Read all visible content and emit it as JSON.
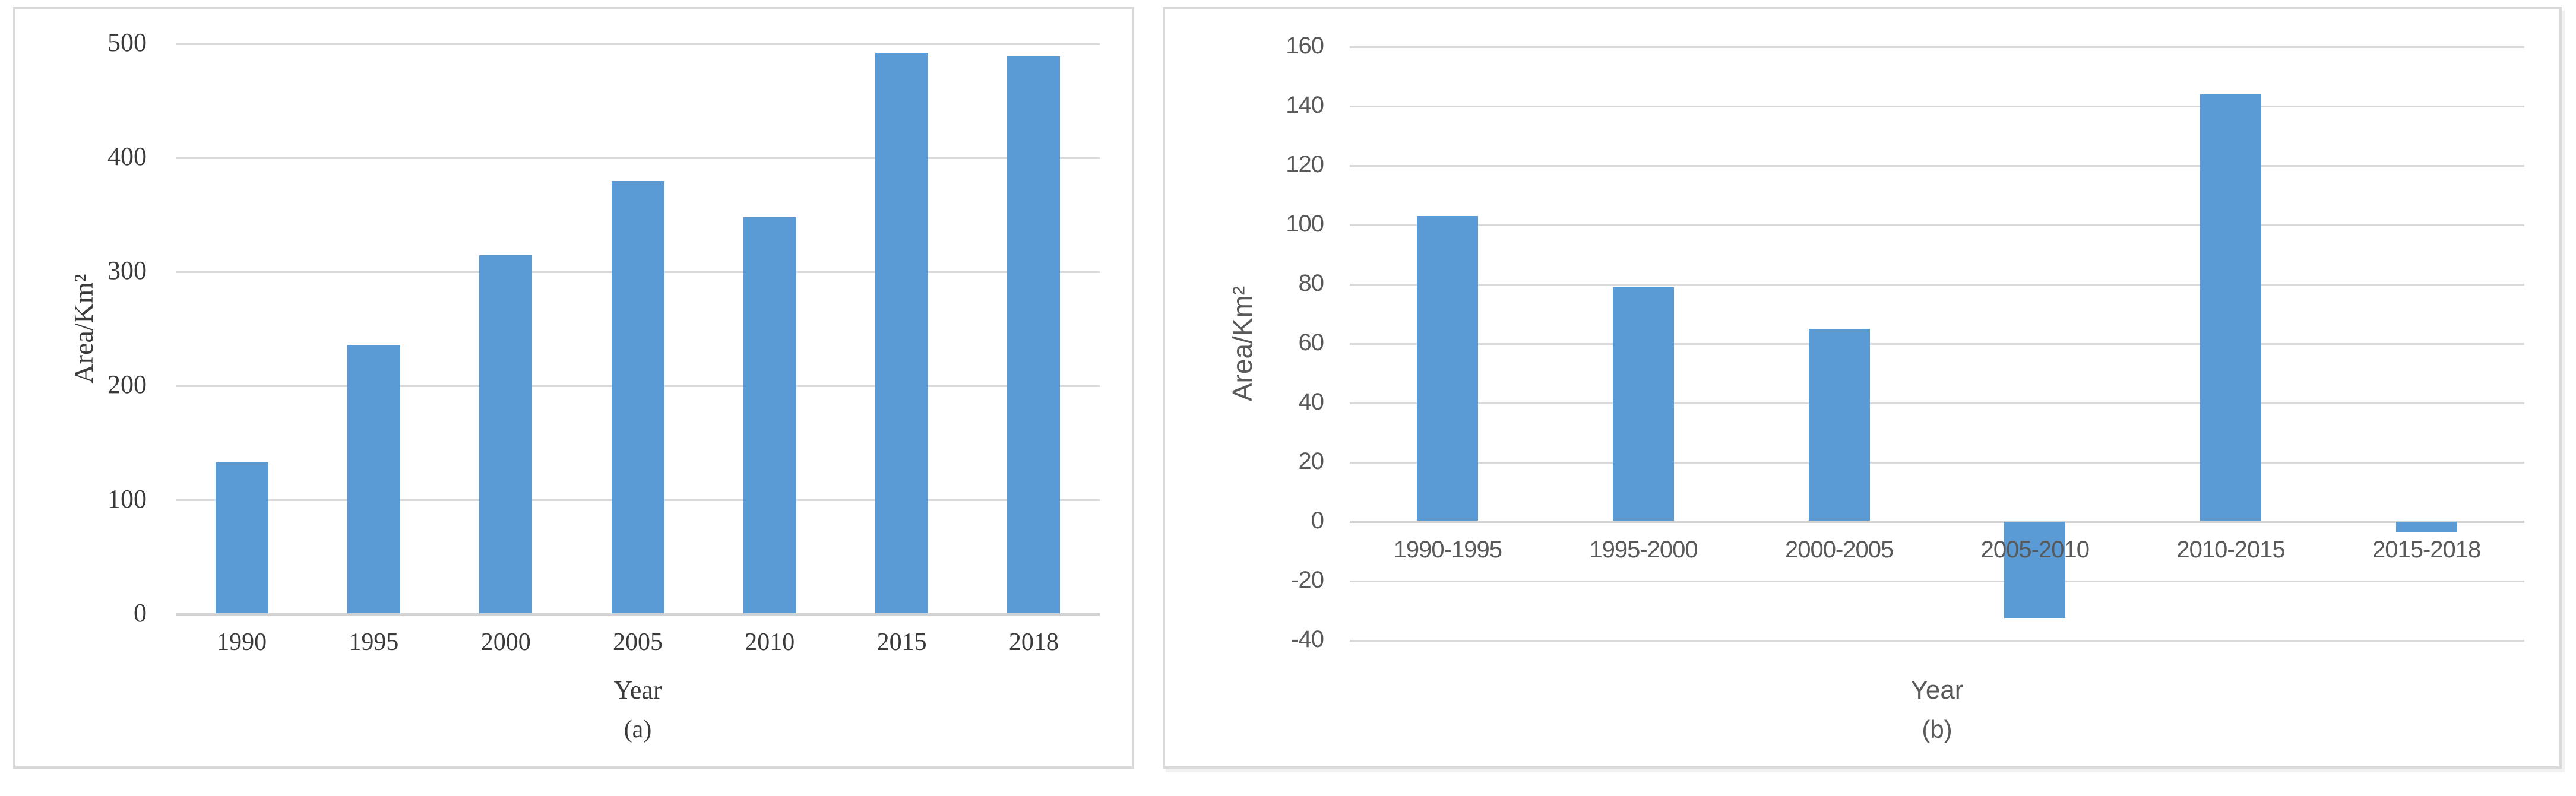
{
  "figure": {
    "background_color": "#ffffff",
    "panel_border_color": "#d9d9d9",
    "panels": [
      {
        "id": "a",
        "caption": "(a)"
      },
      {
        "id": "b",
        "caption": "(b)"
      }
    ]
  },
  "chart_data": [
    {
      "type": "bar",
      "panel": "a",
      "caption": "(a)",
      "title": "",
      "xlabel": "Year",
      "ylabel": "Area/Km²",
      "categories": [
        "1990",
        "1995",
        "2000",
        "2005",
        "2010",
        "2015",
        "2018"
      ],
      "values": [
        133,
        236,
        315,
        380,
        348,
        492,
        489
      ],
      "ylim": [
        0,
        500
      ],
      "yticks": [
        0,
        100,
        200,
        300,
        400,
        500
      ],
      "grid": true,
      "legend": false,
      "bar_color": "#5b9bd5",
      "gridline_color": "#d9d9d9",
      "zero_axis_color": "#d2d2d2",
      "text_color": "#3a3a3a"
    },
    {
      "type": "bar",
      "panel": "b",
      "caption": "(b)",
      "title": "",
      "xlabel": "Year",
      "ylabel": "Area/Km²",
      "categories": [
        "1990-1995",
        "1995-2000",
        "2000-2005",
        "2005-2010",
        "2010-2015",
        "2015-2018"
      ],
      "values": [
        103,
        79,
        65,
        -32,
        144,
        -3
      ],
      "ylim": [
        -40,
        160
      ],
      "yticks": [
        -40,
        -20,
        0,
        20,
        40,
        60,
        80,
        100,
        120,
        140,
        160
      ],
      "grid": true,
      "legend": false,
      "bar_color": "#5b9bd5",
      "gridline_color": "#d9d9d9",
      "zero_axis_color": "#d2d2d2",
      "text_color": "#595959"
    }
  ]
}
